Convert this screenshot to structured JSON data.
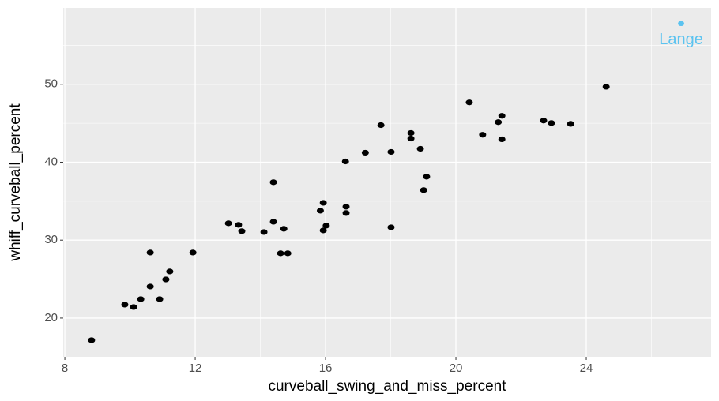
{
  "chart_data": {
    "type": "scatter",
    "x_label": "curveball_swing_and_miss_percent",
    "y_label": "whiff_curveball_percent",
    "xlim": [
      7.95,
      27.83
    ],
    "ylim": [
      15.03,
      59.8
    ],
    "xticks": [
      8,
      12,
      16,
      20,
      24
    ],
    "yticks": [
      20,
      30,
      40,
      50
    ],
    "grid": true,
    "series": [
      {
        "color": "#000000",
        "x": [
          8.82,
          9.84,
          10.11,
          10.33,
          10.62,
          10.62,
          10.91,
          11.1,
          11.22,
          11.93,
          13.02,
          13.33,
          13.43,
          14.11,
          14.4,
          14.4,
          14.62,
          14.72,
          14.84,
          15.84,
          15.93,
          15.93,
          16.02,
          16.63,
          16.63,
          16.61,
          17.22,
          17.7,
          18.01,
          18.01,
          18.62,
          18.62,
          18.91,
          19.01,
          19.1,
          20.41,
          20.82,
          21.3,
          21.41,
          21.41,
          22.69,
          22.93,
          23.52,
          24.61
        ],
        "values": [
          17.16,
          21.72,
          21.42,
          22.43,
          28.41,
          24.05,
          22.43,
          24.96,
          25.98,
          28.41,
          32.16,
          31.96,
          31.15,
          31.04,
          37.43,
          32.36,
          28.31,
          31.45,
          28.31,
          33.78,
          31.25,
          34.79,
          31.86,
          34.29,
          33.48,
          40.1,
          41.22,
          44.76,
          41.32,
          31.65,
          43.75,
          43.04,
          41.72,
          36.42,
          38.14,
          47.67,
          43.52,
          45.14,
          45.95,
          42.94,
          45.34,
          45.03,
          44.92,
          49.68
        ]
      }
    ],
    "annotations": [
      {
        "text": "Lange",
        "x": 26.91,
        "y": 57.79,
        "color": "#5bc3f0"
      }
    ]
  }
}
